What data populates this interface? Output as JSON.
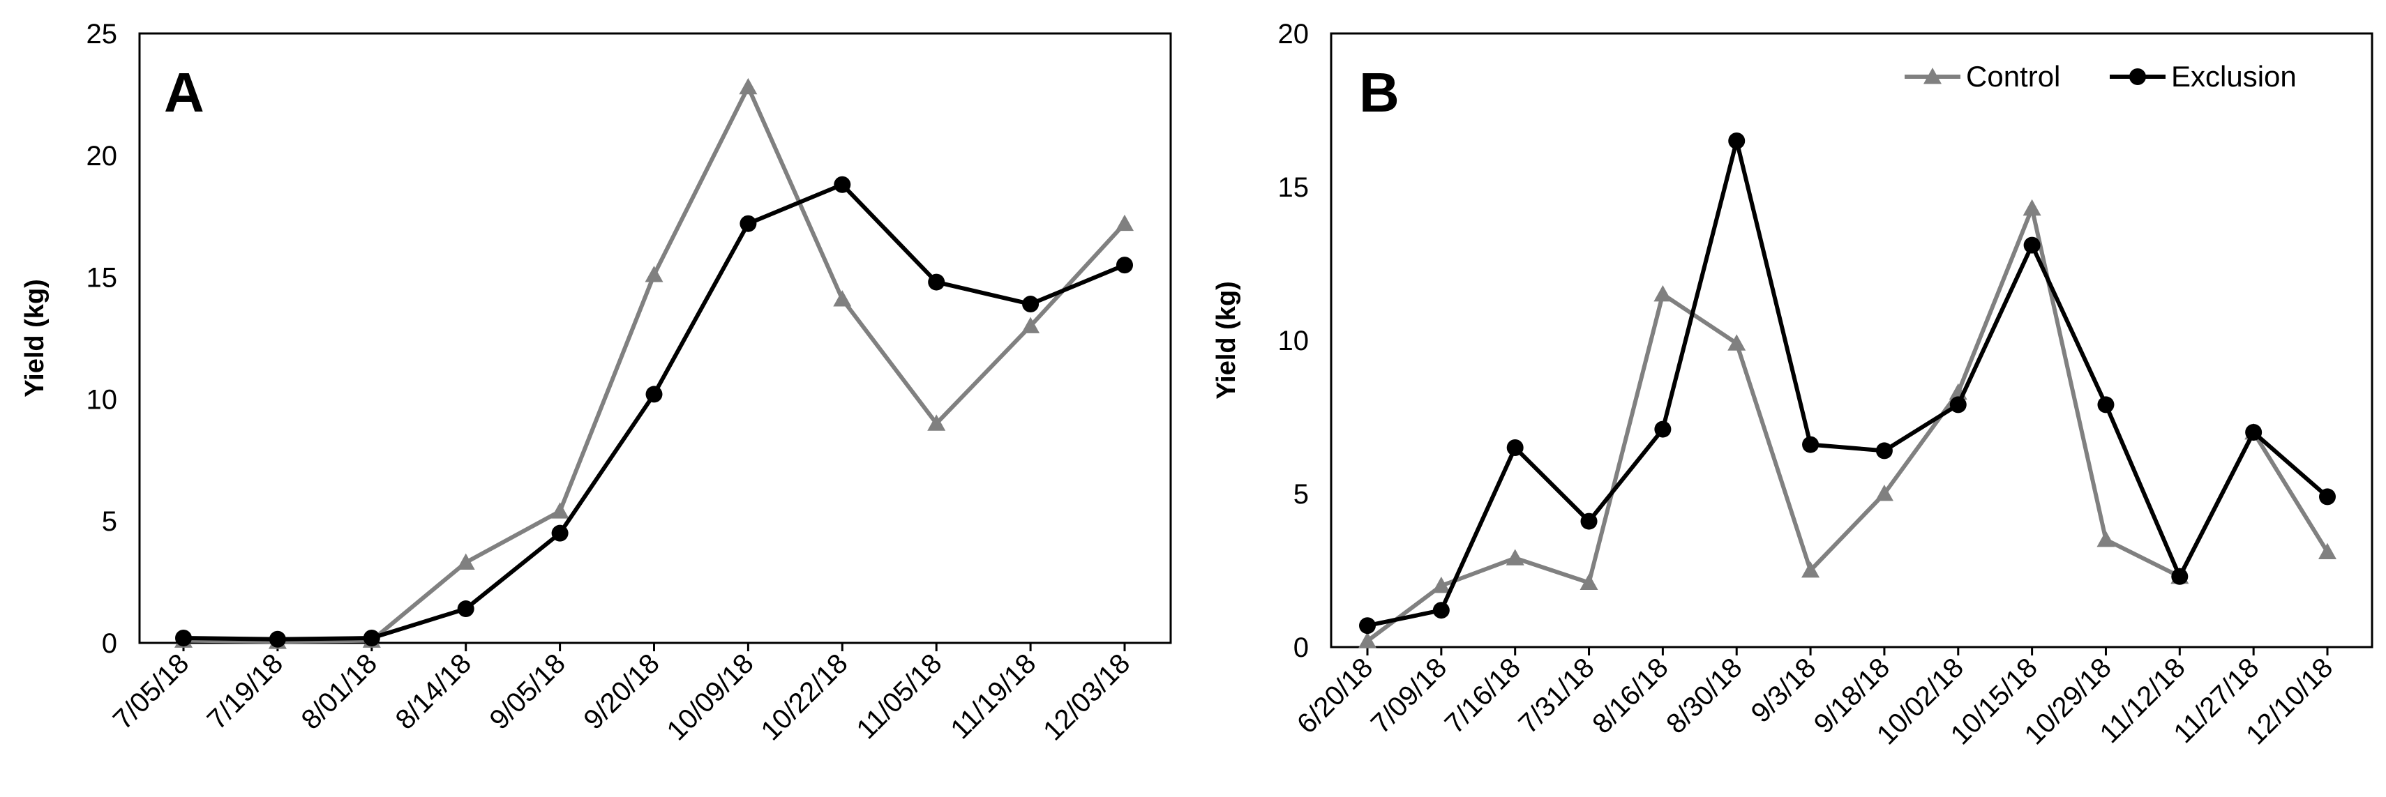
{
  "colors": {
    "control": "#808080",
    "exclusion": "#000000"
  },
  "chart_data": [
    {
      "type": "line",
      "panel_label": "A",
      "ylabel": "Yield (kg)",
      "xlabel": "",
      "ylim": [
        0,
        25
      ],
      "yticks": [
        "0",
        "5",
        "10",
        "15",
        "20",
        "25"
      ],
      "categories": [
        "7/05/18",
        "7/19/18",
        "8/01/18",
        "8/14/18",
        "9/05/18",
        "9/20/18",
        "10/09/18",
        "10/22/18",
        "11/05/18",
        "11/19/18",
        "12/03/18"
      ],
      "legend": null,
      "series": [
        {
          "name": "Control",
          "marker": "triangle",
          "values": [
            0.1,
            0.05,
            0.1,
            3.3,
            5.4,
            15.1,
            22.8,
            14.1,
            9.0,
            13.0,
            17.2
          ]
        },
        {
          "name": "Exclusion",
          "marker": "circle",
          "values": [
            0.2,
            0.15,
            0.2,
            1.4,
            4.5,
            10.2,
            17.2,
            18.8,
            14.8,
            13.9,
            15.5
          ]
        }
      ]
    },
    {
      "type": "line",
      "panel_label": "B",
      "ylabel": "Yield (kg)",
      "xlabel": "",
      "ylim": [
        0,
        20
      ],
      "yticks": [
        "0",
        "5",
        "10",
        "15",
        "20"
      ],
      "categories": [
        "6/20/18",
        "7/09/18",
        "7/16/18",
        "7/31/18",
        "8/16/18",
        "8/30/18",
        "9/3/18",
        "9/18/18",
        "10/02/18",
        "10/15/18",
        "10/29/18",
        "11/12/18",
        "11/27/18",
        "12/10/18"
      ],
      "legend": {
        "position": "top-right",
        "entries": [
          "Control",
          "Exclusion"
        ]
      },
      "series": [
        {
          "name": "Control",
          "marker": "triangle",
          "values": [
            0.2,
            2.0,
            2.9,
            2.1,
            11.5,
            9.9,
            2.5,
            5.0,
            8.3,
            14.3,
            3.5,
            2.3,
            7.0,
            3.1
          ]
        },
        {
          "name": "Exclusion",
          "marker": "circle",
          "values": [
            0.7,
            1.2,
            6.5,
            4.1,
            7.1,
            16.5,
            6.6,
            6.4,
            7.9,
            13.1,
            7.9,
            2.3,
            7.0,
            4.9
          ]
        }
      ]
    }
  ]
}
